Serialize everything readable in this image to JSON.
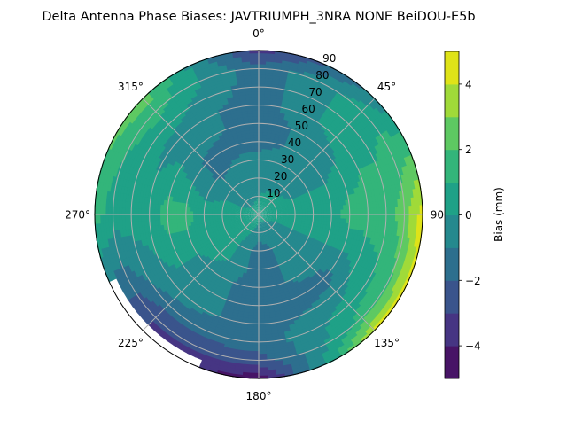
{
  "chart_data": {
    "type": "heatmap",
    "subtype": "polar-contour",
    "title": "Delta Antenna Phase Biases: JAVTRIUMPH_3NRA NONE BeiDOU-E5b",
    "angular_axis": {
      "direction": "clockwise",
      "zero_location": "top",
      "tick_values": [
        0,
        45,
        90,
        135,
        180,
        225,
        270,
        315
      ],
      "tick_labels": [
        "0°",
        "45°",
        "90°",
        "135°",
        "180°",
        "225°",
        "270°",
        "315°"
      ]
    },
    "radial_axis": {
      "range": [
        0,
        90
      ],
      "tick_values": [
        10,
        20,
        30,
        40,
        50,
        60,
        70,
        80,
        90
      ],
      "tick_labels": [
        "10",
        "20",
        "30",
        "40",
        "50",
        "60",
        "70",
        "80",
        "90"
      ],
      "label_angle": 22.5
    },
    "grid": true,
    "colormap": "viridis",
    "levels": [
      -5,
      -4,
      -3,
      -2,
      -1,
      0,
      1,
      2,
      3,
      4,
      5
    ],
    "level_colors": [
      "#471466",
      "#463583",
      "#3a548c",
      "#2d6f8e",
      "#25898e",
      "#1fa187",
      "#33b57a",
      "#5ec962",
      "#a0da39",
      "#dfe318"
    ],
    "colorbar": {
      "label": "Bias (mm)",
      "range": [
        -5,
        5
      ],
      "tick_values": [
        -4,
        -2,
        0,
        2,
        4
      ],
      "tick_labels": [
        "−4",
        "−2",
        "0",
        "2",
        "4"
      ]
    },
    "grid_values": {
      "azimuth_deg": [
        0,
        45,
        90,
        135,
        180,
        225,
        270,
        315
      ],
      "radius": [
        0,
        10,
        20,
        30,
        40,
        50,
        60,
        70,
        80,
        90
      ],
      "values": [
        [
          0.5,
          0.0,
          -0.5,
          -0.5,
          -1.5,
          -1.5,
          -1.5,
          -1.5,
          -1.5,
          -3.5
        ],
        [
          0.5,
          0.5,
          -0.5,
          -0.5,
          -0.5,
          -0.5,
          0.5,
          0.5,
          0.5,
          -0.8
        ],
        [
          0.5,
          0.5,
          0.5,
          0.5,
          0.5,
          1.5,
          1.5,
          1.5,
          2.5,
          4.6
        ],
        [
          0.5,
          -0.5,
          -0.5,
          -0.5,
          -0.5,
          -1.5,
          -0.5,
          0.5,
          1.5,
          4.2
        ],
        [
          0.5,
          -0.5,
          -1.5,
          -1.5,
          -1.5,
          -1.5,
          -1.5,
          -1.5,
          -2.5,
          -4.6
        ],
        [
          0.5,
          0.5,
          0.5,
          0.5,
          -0.5,
          -0.5,
          -0.5,
          -1.5,
          -3.0,
          null
        ],
        [
          0.5,
          0.5,
          0.5,
          0.5,
          1.5,
          1.5,
          0.5,
          0.5,
          0.5,
          1.5
        ],
        [
          0.5,
          -0.5,
          -0.5,
          -1.2,
          -1.2,
          -0.5,
          -0.5,
          0.5,
          1.5,
          2.6
        ]
      ]
    }
  }
}
